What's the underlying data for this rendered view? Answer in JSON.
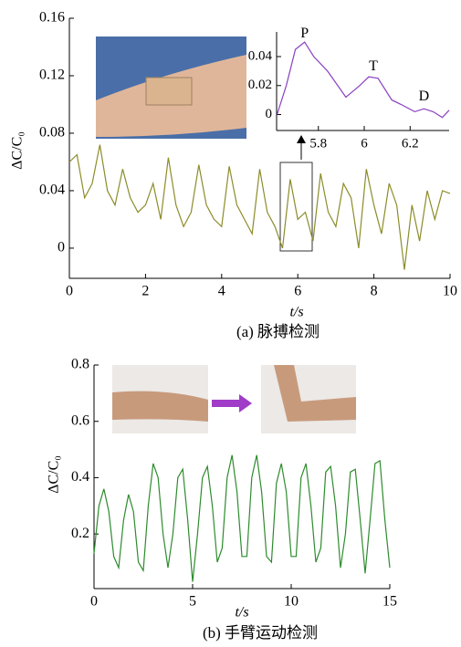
{
  "chart_data": [
    {
      "type": "line",
      "caption": "(a)  脉搏检测",
      "y_label": "ΔC/C₀",
      "x_label": "t/s",
      "xlim": [
        0,
        10
      ],
      "ylim": [
        -0.021,
        0.16
      ],
      "xticks": [
        0,
        2,
        4,
        6,
        8,
        10
      ],
      "yticks": [
        0,
        0.04,
        0.08,
        0.12,
        0.16
      ],
      "series": [
        {
          "color": "#8c8c2a",
          "x": [
            0,
            0.2,
            0.4,
            0.6,
            0.8,
            1.0,
            1.2,
            1.4,
            1.6,
            1.8,
            2.0,
            2.2,
            2.4,
            2.6,
            2.8,
            3.0,
            3.2,
            3.4,
            3.6,
            3.8,
            4.0,
            4.2,
            4.4,
            4.6,
            4.8,
            5.0,
            5.2,
            5.4,
            5.6,
            5.8,
            6.0,
            6.2,
            6.4,
            6.6,
            6.8,
            7.0,
            7.2,
            7.4,
            7.6,
            7.8,
            8.0,
            8.2,
            8.4,
            8.6,
            8.8,
            9.0,
            9.2,
            9.4,
            9.6,
            9.8,
            10.0
          ],
          "values": [
            0.06,
            0.065,
            0.035,
            0.045,
            0.072,
            0.04,
            0.03,
            0.055,
            0.035,
            0.025,
            0.03,
            0.045,
            0.02,
            0.063,
            0.03,
            0.015,
            0.025,
            0.058,
            0.03,
            0.02,
            0.015,
            0.057,
            0.03,
            0.02,
            0.01,
            0.055,
            0.025,
            0.015,
            0.0,
            0.048,
            0.02,
            0.025,
            0.005,
            0.052,
            0.025,
            0.015,
            0.045,
            0.035,
            0.0,
            0.055,
            0.03,
            0.01,
            0.045,
            0.03,
            -0.015,
            0.03,
            0.005,
            0.04,
            0.02,
            0.04,
            0.038
          ]
        }
      ]
    },
    {
      "type": "line",
      "annotations": [
        "P",
        "T",
        "D"
      ],
      "xlim": [
        5.618,
        6.37
      ],
      "ylim": [
        -0.011,
        0.057
      ],
      "xticks": [
        5.8,
        6.0,
        6.2
      ],
      "yticks": [
        0,
        0.02,
        0.04
      ],
      "series": [
        {
          "color": "#8a3fbf",
          "x": [
            5.62,
            5.66,
            5.7,
            5.74,
            5.78,
            5.84,
            5.92,
            5.98,
            6.02,
            6.06,
            6.12,
            6.16,
            6.22,
            6.26,
            6.3,
            6.34,
            6.37
          ],
          "values": [
            0.0,
            0.02,
            0.045,
            0.05,
            0.04,
            0.03,
            0.012,
            0.02,
            0.026,
            0.025,
            0.01,
            0.007,
            0.002,
            0.004,
            0.002,
            -0.002,
            0.003
          ]
        }
      ]
    },
    {
      "type": "line",
      "caption": "(b)   手臂运动检测",
      "y_label": "ΔC/C₀",
      "x_label": "t/s",
      "xlim": [
        0,
        15
      ],
      "ylim": [
        0.006,
        0.8
      ],
      "xticks": [
        0,
        5,
        10,
        15
      ],
      "yticks": [
        0.2,
        0.4,
        0.6,
        0.8
      ],
      "series": [
        {
          "color": "#2e8b2e",
          "x": [
            0,
            0.25,
            0.5,
            0.75,
            1,
            1.25,
            1.5,
            1.75,
            2,
            2.25,
            2.5,
            2.75,
            3,
            3.25,
            3.5,
            3.75,
            4,
            4.25,
            4.5,
            4.75,
            5,
            5.25,
            5.5,
            5.75,
            6,
            6.25,
            6.5,
            6.75,
            7,
            7.25,
            7.5,
            7.75,
            8,
            8.25,
            8.5,
            8.75,
            9,
            9.25,
            9.5,
            9.75,
            10,
            10.25,
            10.5,
            10.75,
            11,
            11.25,
            11.5,
            11.75,
            12,
            12.25,
            12.5,
            12.75,
            13,
            13.25,
            13.5,
            13.75,
            14,
            14.25,
            14.5,
            14.75,
            15
          ],
          "values": [
            0.13,
            0.3,
            0.36,
            0.28,
            0.12,
            0.08,
            0.25,
            0.34,
            0.28,
            0.1,
            0.07,
            0.3,
            0.45,
            0.4,
            0.2,
            0.08,
            0.2,
            0.4,
            0.43,
            0.25,
            0.03,
            0.2,
            0.4,
            0.44,
            0.3,
            0.1,
            0.15,
            0.4,
            0.48,
            0.35,
            0.12,
            0.12,
            0.4,
            0.48,
            0.35,
            0.12,
            0.1,
            0.38,
            0.45,
            0.35,
            0.12,
            0.12,
            0.4,
            0.45,
            0.3,
            0.1,
            0.15,
            0.42,
            0.44,
            0.3,
            0.08,
            0.2,
            0.42,
            0.43,
            0.25,
            0.06,
            0.25,
            0.45,
            0.46,
            0.25,
            0.08
          ]
        }
      ]
    }
  ]
}
